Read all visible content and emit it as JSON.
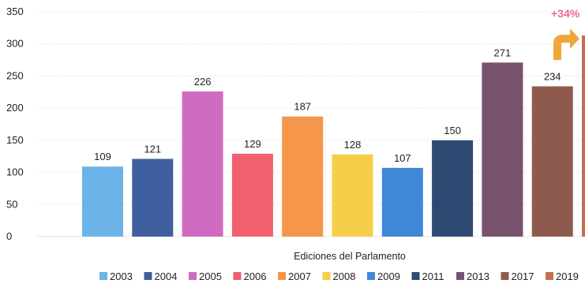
{
  "chart_data": {
    "type": "bar",
    "title": "",
    "xlabel": "Ediciones del Parlamento",
    "ylabel": "",
    "ylim": [
      0,
      350
    ],
    "yticks": [
      0,
      50,
      100,
      150,
      200,
      250,
      300,
      350
    ],
    "grid": true,
    "legend_position": "bottom",
    "categories": [
      "2003",
      "2004",
      "2005",
      "2006",
      "2007",
      "2008",
      "2009",
      "2011",
      "2013",
      "2017",
      "2019"
    ],
    "values": [
      109,
      121,
      226,
      129,
      187,
      128,
      107,
      150,
      271,
      234,
      null
    ],
    "data_labels": [
      "109",
      "121",
      "226",
      "129",
      "187",
      "128",
      "107",
      "150",
      "271",
      "234",
      ""
    ],
    "colors": [
      "#6bb3e8",
      "#3f5f9e",
      "#cf6cc2",
      "#f0606e",
      "#f6964a",
      "#f6cf4a",
      "#3f88d8",
      "#2e4a73",
      "#77526d",
      "#8f5a4e",
      "#c07050"
    ],
    "annotation": {
      "text": "+34%",
      "color": "#f2649a",
      "arrow_color": "#f0a73a"
    }
  }
}
